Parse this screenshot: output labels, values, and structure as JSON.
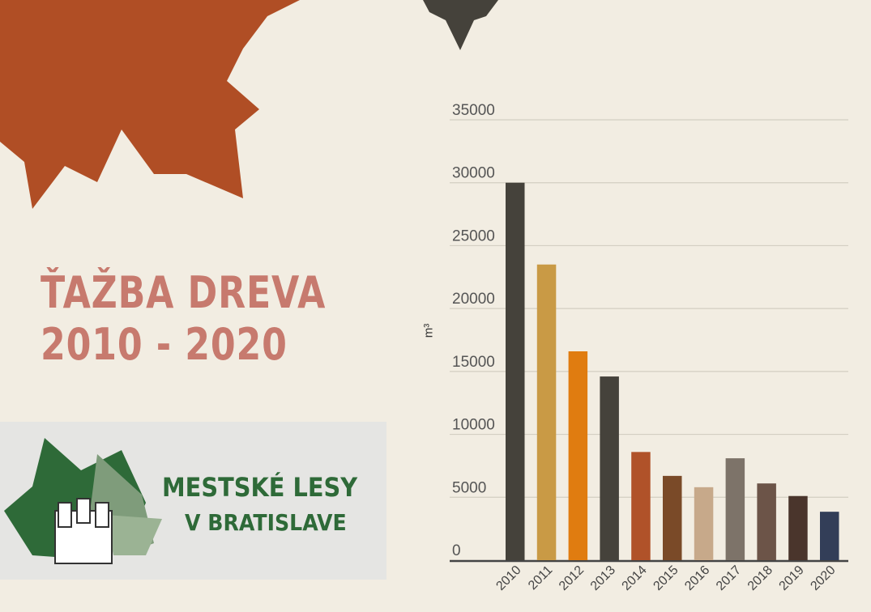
{
  "title_line1": "ŤAŽBA DREVA",
  "title_line2": "2010 - 2020",
  "logo": {
    "line1": "MESTSKÉ LESY",
    "line2": "V BRATISLAVE"
  },
  "chart_data": {
    "type": "bar",
    "title": "",
    "xlabel": "",
    "ylabel": "m³",
    "ylim": [
      0,
      35000
    ],
    "yticks": [
      0,
      5000,
      10000,
      15000,
      20000,
      25000,
      30000,
      35000
    ],
    "grid": true,
    "categories": [
      "2010",
      "2011",
      "2012",
      "2013",
      "2014",
      "2015",
      "2016",
      "2017",
      "2018",
      "2019",
      "2020"
    ],
    "values": [
      30000,
      23500,
      16600,
      14600,
      8600,
      6700,
      5800,
      8100,
      6100,
      5100,
      3850
    ],
    "colors": [
      "#45423b",
      "#c99a45",
      "#e07c10",
      "#45423b",
      "#b05229",
      "#7a4a28",
      "#c7a98a",
      "#7d7369",
      "#6c5448",
      "#4a352c",
      "#333e58"
    ]
  }
}
